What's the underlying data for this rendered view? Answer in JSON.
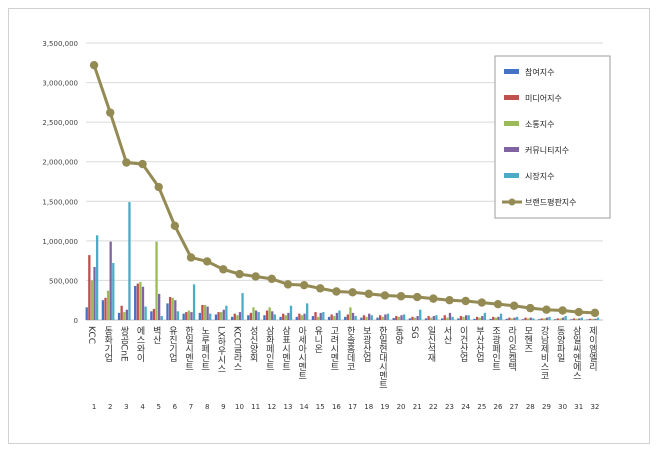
{
  "chart_data": {
    "type": "bar+line",
    "ylim": [
      0,
      3500000
    ],
    "yticks": [
      "0",
      "500,000",
      "1,000,000",
      "1,500,000",
      "2,000,000",
      "2,500,000",
      "3,000,000",
      "3,500,000"
    ],
    "ytick_values": [
      0,
      500000,
      1000000,
      1500000,
      2000000,
      2500000,
      3000000,
      3500000
    ],
    "categories": [
      "KCC",
      "동화기업",
      "쌍곰CnE",
      "에스와이",
      "벽산",
      "유진기업",
      "한일시멘트",
      "노루페인트",
      "LX하우시스",
      "KCC글라스",
      "성신양회",
      "삼화페인트",
      "삼표시멘트",
      "아세아시멘트",
      "유니온",
      "고려시멘트",
      "한솔홈데코",
      "보광산업",
      "한일현대시멘트",
      "동양",
      "SG",
      "일신석재",
      "서산",
      "이건산업",
      "부산산업",
      "조광페인트",
      "라이온켐텍",
      "모헨즈",
      "강남제비스코",
      "동양파일",
      "삼일씨엔에스",
      "제이엠엘리"
    ],
    "index_labels": [
      "1",
      "2",
      "3",
      "4",
      "5",
      "6",
      "7",
      "8",
      "9",
      "10",
      "11",
      "12",
      "13",
      "14",
      "15",
      "16",
      "17",
      "18",
      "19",
      "20",
      "21",
      "22",
      "23",
      "24",
      "25",
      "26",
      "27",
      "28",
      "29",
      "30",
      "31",
      "32"
    ],
    "series": [
      {
        "name": "참여지수",
        "color": "#4472c4",
        "values": [
          160000,
          250000,
          90000,
          430000,
          110000,
          210000,
          80000,
          90000,
          70000,
          40000,
          60000,
          60000,
          40000,
          40000,
          50000,
          40000,
          40000,
          30000,
          30000,
          25000,
          20000,
          20000,
          20000,
          20000,
          15000,
          15000,
          15000,
          10000,
          10000,
          10000,
          10000,
          8000
        ]
      },
      {
        "name": "미디어지수",
        "color": "#c0504d",
        "values": [
          820000,
          280000,
          180000,
          460000,
          140000,
          290000,
          100000,
          190000,
          100000,
          80000,
          90000,
          120000,
          80000,
          80000,
          100000,
          70000,
          70000,
          60000,
          60000,
          50000,
          40000,
          50000,
          60000,
          50000,
          40000,
          40000,
          30000,
          30000,
          20000,
          20000,
          20000,
          15000
        ]
      },
      {
        "name": "소통지수",
        "color": "#9bbb59",
        "values": [
          500000,
          370000,
          100000,
          480000,
          990000,
          280000,
          120000,
          190000,
          100000,
          60000,
          160000,
          160000,
          60000,
          60000,
          40000,
          50000,
          160000,
          40000,
          40000,
          40000,
          30000,
          30000,
          30000,
          40000,
          30000,
          30000,
          20000,
          20000,
          20000,
          20000,
          15000,
          15000
        ]
      },
      {
        "name": "커뮤니티지수",
        "color": "#8064a2",
        "values": [
          670000,
          990000,
          130000,
          420000,
          330000,
          250000,
          100000,
          170000,
          130000,
          100000,
          120000,
          110000,
          90000,
          80000,
          90000,
          90000,
          90000,
          80000,
          70000,
          60000,
          50000,
          50000,
          90000,
          60000,
          50000,
          40000,
          30000,
          30000,
          30000,
          30000,
          20000,
          15000
        ]
      },
      {
        "name": "시장지수",
        "color": "#4bacc6",
        "values": [
          1070000,
          720000,
          1490000,
          170000,
          50000,
          110000,
          450000,
          80000,
          180000,
          340000,
          100000,
          70000,
          180000,
          210000,
          100000,
          120000,
          50000,
          60000,
          80000,
          70000,
          130000,
          60000,
          40000,
          60000,
          90000,
          80000,
          40000,
          20000,
          40000,
          50000,
          30000,
          30000
        ]
      }
    ],
    "line_series": {
      "name": "브랜드평판지수",
      "color": "#948a54",
      "values": [
        3220000,
        2620000,
        1990000,
        1970000,
        1680000,
        1190000,
        790000,
        740000,
        640000,
        580000,
        550000,
        520000,
        450000,
        440000,
        400000,
        360000,
        350000,
        330000,
        310000,
        300000,
        290000,
        270000,
        250000,
        240000,
        220000,
        200000,
        180000,
        150000,
        130000,
        120000,
        100000,
        90000
      ]
    },
    "legend_position": "top-right"
  }
}
